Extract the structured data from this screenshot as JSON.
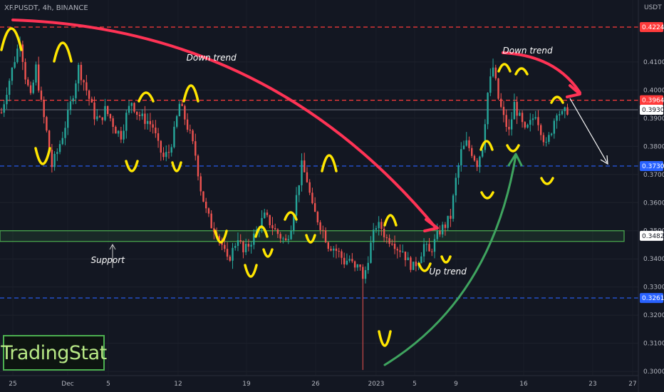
{
  "header": {
    "symbol": "XRPUSDT, 4h, BINANCE",
    "currency": "USDT"
  },
  "brand": {
    "text": "TradingStat"
  },
  "colors": {
    "background": "#131722",
    "up": "#26a69a",
    "down": "#ef5350",
    "resistance": "#ff3b3b",
    "support_line": "#2962ff",
    "support_zone": "#4caf50",
    "arrow_down": "#ff3355",
    "arrow_up": "#3fa45f",
    "swing_marks": "#ffe600"
  },
  "chart_data": {
    "type": "candlestick",
    "symbol": "XRPUSDT",
    "timeframe": "4h",
    "exchange": "BINANCE",
    "ylabel": "USDT",
    "ylim": [
      0.2985,
      0.4305
    ],
    "y_ticks": [
      "0.4100",
      "0.4000",
      "0.3900",
      "0.3800",
      "0.3700",
      "0.3600",
      "0.3500",
      "0.3400",
      "0.3300",
      "0.3200",
      "0.3100",
      "0.3000"
    ],
    "x_ticks": [
      "25",
      "Dec",
      "5",
      "12",
      "19",
      "26",
      "2023",
      "5",
      "9",
      "16",
      "23",
      "27"
    ],
    "close_path": [
      [
        0,
        0.392
      ],
      [
        2,
        0.4
      ],
      [
        5,
        0.411
      ],
      [
        7,
        0.418
      ],
      [
        9,
        0.405
      ],
      [
        11,
        0.397
      ],
      [
        13,
        0.408
      ],
      [
        15,
        0.395
      ],
      [
        17,
        0.385
      ],
      [
        19,
        0.373
      ],
      [
        21,
        0.378
      ],
      [
        23,
        0.384
      ],
      [
        25,
        0.391
      ],
      [
        27,
        0.399
      ],
      [
        29,
        0.408
      ],
      [
        31,
        0.403
      ],
      [
        33,
        0.397
      ],
      [
        35,
        0.391
      ],
      [
        37,
        0.389
      ],
      [
        39,
        0.393
      ],
      [
        41,
        0.39
      ],
      [
        43,
        0.386
      ],
      [
        45,
        0.384
      ],
      [
        47,
        0.391
      ],
      [
        49,
        0.396
      ],
      [
        51,
        0.392
      ],
      [
        53,
        0.39
      ],
      [
        55,
        0.389
      ],
      [
        57,
        0.387
      ],
      [
        59,
        0.38
      ],
      [
        61,
        0.376
      ],
      [
        63,
        0.378
      ],
      [
        65,
        0.385
      ],
      [
        67,
        0.395
      ],
      [
        69,
        0.39
      ],
      [
        71,
        0.384
      ],
      [
        73,
        0.377
      ],
      [
        75,
        0.365
      ],
      [
        77,
        0.357
      ],
      [
        79,
        0.352
      ],
      [
        81,
        0.35
      ],
      [
        83,
        0.345
      ],
      [
        85,
        0.339
      ],
      [
        87,
        0.343
      ],
      [
        89,
        0.348
      ],
      [
        91,
        0.342
      ],
      [
        93,
        0.345
      ],
      [
        95,
        0.348
      ],
      [
        97,
        0.352
      ],
      [
        99,
        0.355
      ],
      [
        101,
        0.353
      ],
      [
        103,
        0.35
      ],
      [
        105,
        0.348
      ],
      [
        107,
        0.346
      ],
      [
        109,
        0.352
      ],
      [
        111,
        0.362
      ],
      [
        113,
        0.373
      ],
      [
        115,
        0.368
      ],
      [
        117,
        0.358
      ],
      [
        119,
        0.354
      ],
      [
        121,
        0.35
      ],
      [
        123,
        0.345
      ],
      [
        125,
        0.344
      ],
      [
        127,
        0.342
      ],
      [
        129,
        0.339
      ],
      [
        131,
        0.34
      ],
      [
        133,
        0.336
      ],
      [
        135,
        0.338
      ],
      [
        136,
        0.332
      ],
      [
        137,
        0.336
      ],
      [
        139,
        0.345
      ],
      [
        141,
        0.352
      ],
      [
        143,
        0.351
      ],
      [
        145,
        0.347
      ],
      [
        147,
        0.347
      ],
      [
        149,
        0.344
      ],
      [
        151,
        0.343
      ],
      [
        153,
        0.339
      ],
      [
        155,
        0.337
      ],
      [
        157,
        0.34
      ],
      [
        159,
        0.345
      ],
      [
        161,
        0.342
      ],
      [
        163,
        0.346
      ],
      [
        165,
        0.35
      ],
      [
        167,
        0.352
      ],
      [
        169,
        0.355
      ],
      [
        171,
        0.368
      ],
      [
        173,
        0.378
      ],
      [
        175,
        0.381
      ],
      [
        177,
        0.378
      ],
      [
        179,
        0.374
      ],
      [
        181,
        0.38
      ],
      [
        183,
        0.399
      ],
      [
        185,
        0.408
      ],
      [
        187,
        0.397
      ],
      [
        189,
        0.39
      ],
      [
        191,
        0.385
      ],
      [
        193,
        0.395
      ],
      [
        195,
        0.39
      ],
      [
        197,
        0.385
      ],
      [
        199,
        0.388
      ],
      [
        201,
        0.392
      ],
      [
        203,
        0.386
      ],
      [
        205,
        0.38
      ],
      [
        207,
        0.386
      ],
      [
        209,
        0.393
      ],
      [
        211,
        0.391
      ],
      [
        213,
        0.393
      ]
    ],
    "price_lines": [
      {
        "label": "0.4224",
        "value": 0.4224,
        "style": "dashed",
        "color": "#ff3b3b"
      },
      {
        "label": "0.3964",
        "value": 0.3964,
        "style": "dashed",
        "color": "#ff3b3b"
      },
      {
        "label": "0.3930",
        "value": 0.393,
        "style": "solid",
        "color": "#5d606b"
      },
      {
        "label": "0.3730",
        "value": 0.373,
        "style": "dashed",
        "color": "#2962ff"
      },
      {
        "label": "0.3482",
        "value": 0.3482,
        "style": "solid",
        "color": "#4caf50"
      },
      {
        "label": "0.3261",
        "value": 0.3261,
        "style": "dashed",
        "color": "#2962ff"
      }
    ],
    "support_zone": [
      0.3462,
      0.35
    ],
    "annotations": [
      {
        "text": "Down trend",
        "bar": 79,
        "value": 0.4105
      },
      {
        "text": "Down trend",
        "bar": 198,
        "value": 0.413
      },
      {
        "text": "Up trend",
        "bar": 168,
        "value": 0.3345
      },
      {
        "text": "Support",
        "bar": 40,
        "value": 0.3385
      }
    ]
  }
}
